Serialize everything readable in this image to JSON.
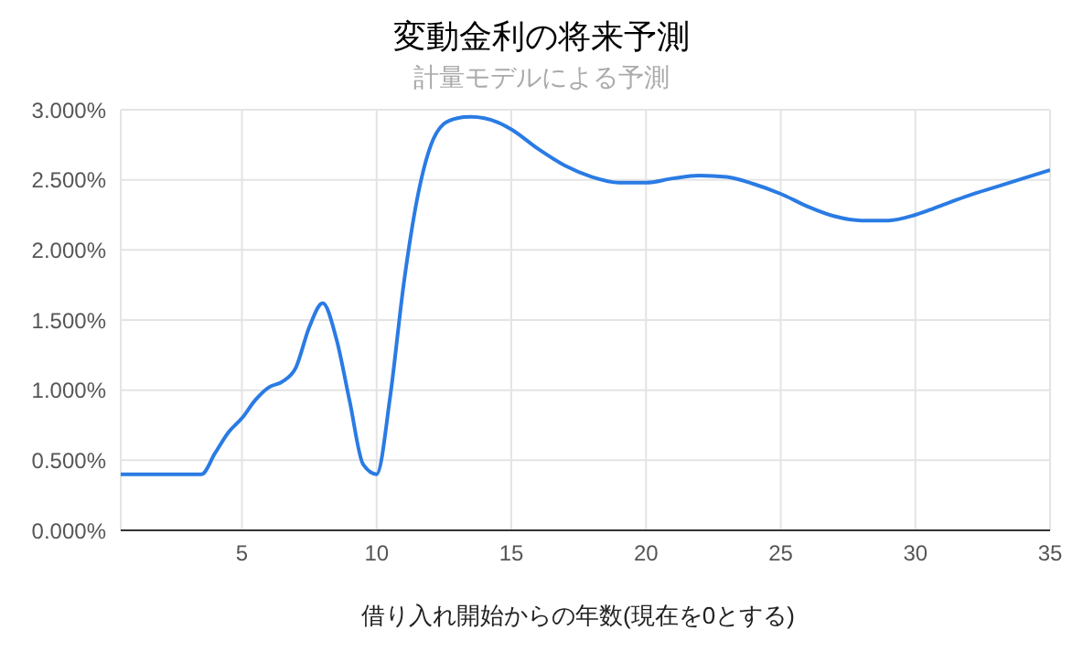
{
  "chart_data": {
    "type": "line",
    "title": "変動金利の将来予測",
    "subtitle": "計量モデルによる予測",
    "xlabel": "借り入れ開始からの年数(現在を0とする)",
    "x": [
      0.5,
      1,
      1.5,
      2,
      2.5,
      3,
      3.5,
      4,
      4.5,
      5,
      5.5,
      6,
      6.5,
      7,
      7.5,
      8,
      8.5,
      9,
      9.5,
      10,
      10.5,
      11,
      11.5,
      12,
      12.5,
      13,
      13.5,
      14,
      14.5,
      15,
      16,
      17,
      18,
      19,
      20,
      21,
      22,
      23,
      24,
      25,
      26,
      27,
      28,
      29,
      30,
      31,
      32,
      33,
      34,
      35
    ],
    "series": [
      {
        "color": "#2a7be4",
        "values": [
          0.4,
          0.4,
          0.4,
          0.4,
          0.4,
          0.4,
          0.4,
          0.55,
          0.7,
          0.8,
          0.93,
          1.02,
          1.06,
          1.16,
          1.45,
          1.62,
          1.37,
          0.92,
          0.47,
          0.4,
          0.95,
          1.75,
          2.36,
          2.74,
          2.9,
          2.94,
          2.95,
          2.94,
          2.91,
          2.86,
          2.72,
          2.6,
          2.52,
          2.48,
          2.48,
          2.51,
          2.53,
          2.52,
          2.47,
          2.4,
          2.31,
          2.24,
          2.21,
          2.21,
          2.25,
          2.32,
          2.39,
          2.45,
          2.51,
          2.57
        ]
      }
    ],
    "xlim": [
      0.5,
      35
    ],
    "xticks": [
      5,
      10,
      15,
      20,
      25,
      30,
      35
    ],
    "ylim": [
      0,
      3
    ],
    "yticks": [
      {
        "value": 0,
        "label": "0.000%"
      },
      {
        "value": 0.5,
        "label": "0.500%"
      },
      {
        "value": 1,
        "label": "1.000%"
      },
      {
        "value": 1.5,
        "label": "1.500%"
      },
      {
        "value": 2,
        "label": "2.000%"
      },
      {
        "value": 2.5,
        "label": "2.500%"
      },
      {
        "value": 3,
        "label": "3.000%"
      }
    ],
    "grid": true,
    "legend": false,
    "marker": "none",
    "line_style": "solid"
  }
}
